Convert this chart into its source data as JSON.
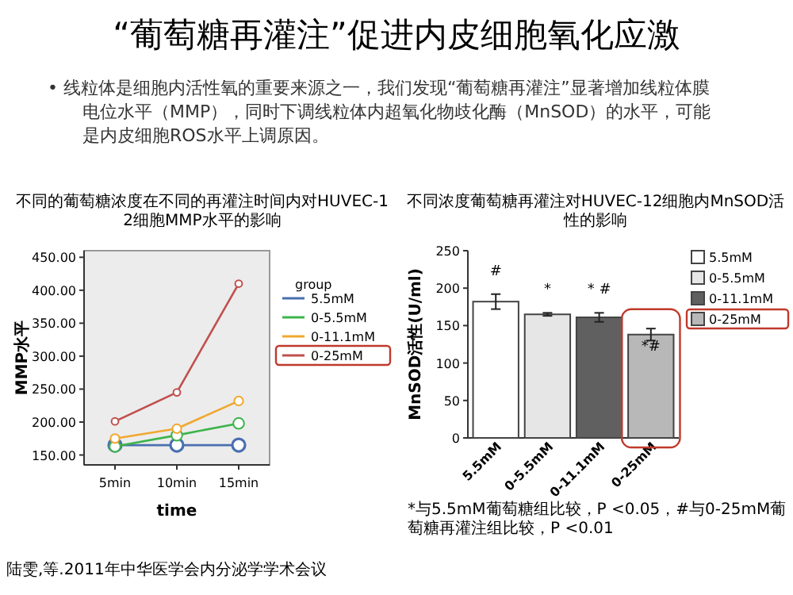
{
  "chart_data": [
    {
      "type": "other",
      "title": "“葡萄糖再灌注”促进内皮细胞氧化应激",
      "annotations": [
        "• 线粒体是细胞内活性氧的重要来源之一，我们发现“葡萄糖再灌注”显著增加线粒体膜电位水平（MMP），同时下调线粒体内超氧化物歧化酶（MnSOD）的水平，可能是内皮细胞ROS水平上调原因。",
        "陆雯,等.2011年中华医学会内分泌学学术会议"
      ]
    },
    {
      "type": "line",
      "title": "不同的葡萄糖浓度在不同的再灌注时间内对HUVEC-12细胞MMP水平的影响",
      "xlabel": "time",
      "ylabel": "MMP水平",
      "categories": [
        "5min",
        "10min",
        "15min"
      ],
      "ylim": [
        135,
        460
      ],
      "yticks": [
        {
          "value": 150,
          "label": "150.00"
        },
        {
          "value": 200,
          "label": "200.00"
        },
        {
          "value": 250,
          "label": "250.00"
        },
        {
          "value": 300,
          "label": "300.00"
        },
        {
          "value": 350,
          "label": "350.00"
        },
        {
          "value": 400,
          "label": "400.00"
        },
        {
          "value": 450,
          "label": "450.00"
        }
      ],
      "legend_title": "group",
      "legend": "right",
      "marker": "circle",
      "series": [
        {
          "name": "5.5mM",
          "color": "#4a6fb0",
          "values": [
            165,
            165,
            165
          ]
        },
        {
          "name": "0-5.5mM",
          "color": "#3cb44b",
          "values": [
            163,
            180,
            198
          ]
        },
        {
          "name": "0-11.1mM",
          "color": "#f0a830",
          "values": [
            175,
            190,
            232
          ]
        },
        {
          "name": "0-25mM",
          "color": "#c0504d",
          "values": [
            201,
            245,
            410
          ]
        }
      ]
    },
    {
      "type": "bar",
      "title": "不同浓度葡萄糖再灌注对HUVEC-12细胞内MnSOD活性的影响",
      "ylabel": "MnSOD活性(U/ml)",
      "categories": [
        "5.5mM",
        "0-5.5mM",
        "0-11.1mM",
        "0-25mM"
      ],
      "stacked": true,
      "series": [
        {
          "name": "5.5mM",
          "color": "#ffffff",
          "values": [
            182,
            null,
            null,
            null
          ],
          "errors": [
            10,
            null,
            null,
            null
          ]
        },
        {
          "name": "0-5.5mM",
          "color": "#e6e6e6",
          "values": [
            null,
            165,
            null,
            null
          ],
          "errors": [
            null,
            2,
            null,
            null
          ]
        },
        {
          "name": "0-11.1mM",
          "color": "#606060",
          "values": [
            null,
            null,
            161,
            null
          ],
          "errors": [
            null,
            null,
            6,
            null
          ]
        },
        {
          "name": "0-25mM",
          "color": "#b8b8b8",
          "values": [
            null,
            null,
            null,
            138
          ],
          "errors": [
            null,
            null,
            null,
            8
          ]
        }
      ],
      "ylim": [
        0,
        250
      ],
      "yticks": [
        0,
        50,
        100,
        150,
        200,
        250
      ],
      "legend": "top right",
      "annotations": [
        {
          "text": "#",
          "x": "5.5mM",
          "y": 182
        },
        {
          "text": "*",
          "x": "0-5.5mM",
          "y": 165
        },
        {
          "text": "* #",
          "x": "0-11.1mM",
          "y": 161
        },
        {
          "text": "*#",
          "x": "0-25mM",
          "y": 138
        },
        "*与5.5mM葡萄糖组比较，P <0.05，#与0-25mM葡萄糖再灌注组比较，P <0.01"
      ]
    }
  ]
}
